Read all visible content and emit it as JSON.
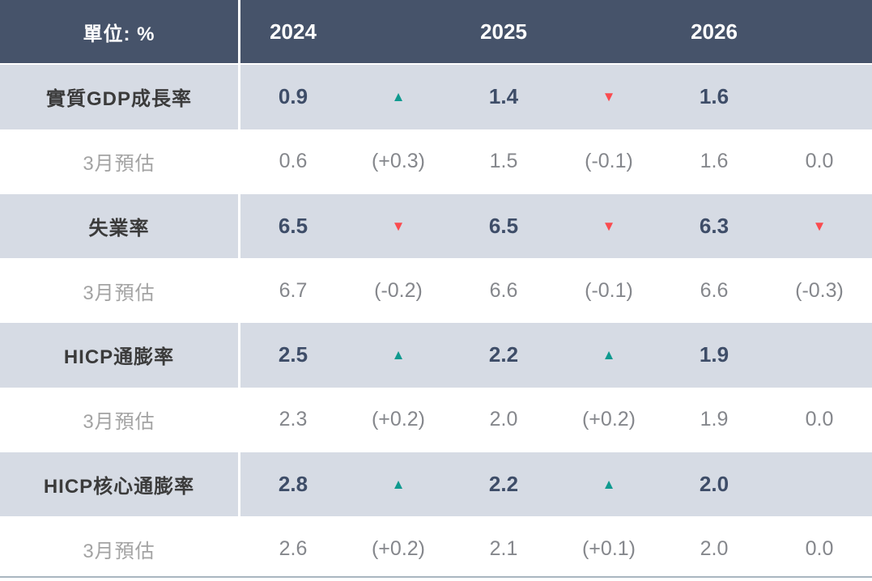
{
  "colors": {
    "header-bg": "#46536A",
    "band-bg": "#D6DBE4",
    "white-bg": "#FFFFFF",
    "header-text": "#FFFFFF",
    "label-text": "#3B3B3B",
    "value-text": "#3E4D68",
    "muted-label-text": "#A3A3A3",
    "muted-value-text": "#85878C",
    "up": "#0F9A8F",
    "down": "#FA4B4F",
    "bottom-rule": "#A9B6C0",
    "divider": "#FFFFFF"
  },
  "icons": {
    "up": {
      "name": "up-triangle-icon",
      "glyph": "▲"
    },
    "down": {
      "name": "down-triangle-icon",
      "glyph": "▼"
    }
  },
  "table": {
    "unit_label": "單位: %",
    "years": [
      "2024",
      "2025",
      "2026"
    ],
    "rows": [
      {
        "type": "main",
        "label": "實質GDP成長率",
        "cells": [
          {
            "value": "0.9",
            "arrow": "up"
          },
          {
            "value": "1.4",
            "arrow": "down"
          },
          {
            "value": "1.6",
            "arrow": null
          }
        ]
      },
      {
        "type": "estimate",
        "label": "3月預估",
        "cells": [
          {
            "value": "0.6",
            "change": "(+0.3)"
          },
          {
            "value": "1.5",
            "change": "(-0.1)"
          },
          {
            "value": "1.6",
            "change": "0.0"
          }
        ]
      },
      {
        "type": "main",
        "label": "失業率",
        "cells": [
          {
            "value": "6.5",
            "arrow": "down"
          },
          {
            "value": "6.5",
            "arrow": "down"
          },
          {
            "value": "6.3",
            "arrow": "down"
          }
        ]
      },
      {
        "type": "estimate",
        "label": "3月預估",
        "cells": [
          {
            "value": "6.7",
            "change": "(-0.2)"
          },
          {
            "value": "6.6",
            "change": "(-0.1)"
          },
          {
            "value": "6.6",
            "change": "(-0.3)"
          }
        ]
      },
      {
        "type": "main",
        "label": "HICP通膨率",
        "cells": [
          {
            "value": "2.5",
            "arrow": "up"
          },
          {
            "value": "2.2",
            "arrow": "up"
          },
          {
            "value": "1.9",
            "arrow": null
          }
        ]
      },
      {
        "type": "estimate",
        "label": "3月預估",
        "cells": [
          {
            "value": "2.3",
            "change": "(+0.2)"
          },
          {
            "value": "2.0",
            "change": "(+0.2)"
          },
          {
            "value": "1.9",
            "change": "0.0"
          }
        ]
      },
      {
        "type": "main",
        "label": "HICP核心通膨率",
        "cells": [
          {
            "value": "2.8",
            "arrow": "up"
          },
          {
            "value": "2.2",
            "arrow": "up"
          },
          {
            "value": "2.0",
            "arrow": null
          }
        ]
      },
      {
        "type": "estimate",
        "label": "3月預估",
        "cells": [
          {
            "value": "2.6",
            "change": "(+0.2)"
          },
          {
            "value": "2.1",
            "change": "(+0.1)"
          },
          {
            "value": "2.0",
            "change": "0.0"
          }
        ]
      }
    ]
  },
  "chart_data": {
    "type": "table",
    "unit": "單位: %",
    "years": [
      2024,
      2025,
      2026
    ],
    "indicators": [
      {
        "name": "實質GDP成長率",
        "current": [
          0.9,
          1.4,
          1.6
        ],
        "trend": [
          "up",
          "down",
          null
        ],
        "march_estimate": [
          0.6,
          1.5,
          1.6
        ],
        "revision": [
          "+0.3",
          "-0.1",
          "0.0"
        ]
      },
      {
        "name": "失業率",
        "current": [
          6.5,
          6.5,
          6.3
        ],
        "trend": [
          "down",
          "down",
          "down"
        ],
        "march_estimate": [
          6.7,
          6.6,
          6.6
        ],
        "revision": [
          "-0.2",
          "-0.1",
          "-0.3"
        ]
      },
      {
        "name": "HICP通膨率",
        "current": [
          2.5,
          2.2,
          1.9
        ],
        "trend": [
          "up",
          "up",
          null
        ],
        "march_estimate": [
          2.3,
          2.0,
          1.9
        ],
        "revision": [
          "+0.2",
          "+0.2",
          "0.0"
        ]
      },
      {
        "name": "HICP核心通膨率",
        "current": [
          2.8,
          2.2,
          2.0
        ],
        "trend": [
          "up",
          "up",
          null
        ],
        "march_estimate": [
          2.6,
          2.1,
          2.0
        ],
        "revision": [
          "+0.2",
          "+0.1",
          "0.0"
        ]
      }
    ]
  }
}
